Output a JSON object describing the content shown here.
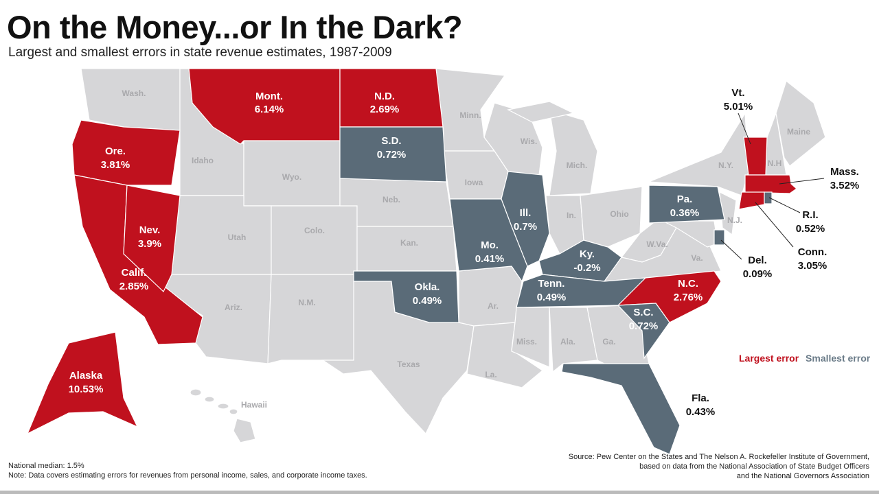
{
  "title": "On the Money...or In the Dark?",
  "subtitle": "Largest and smallest errors in state revenue estimates, 1987-2009",
  "colors": {
    "largest": "#c0111e",
    "smallest": "#5a6b78",
    "other": "#d6d6d8"
  },
  "legend": {
    "largest": "Largest error",
    "smallest": "Smallest error"
  },
  "largest_error_states": [
    {
      "name": "Mont.",
      "value": "6.14%"
    },
    {
      "name": "N.D.",
      "value": "2.69%"
    },
    {
      "name": "Ore.",
      "value": "3.81%"
    },
    {
      "name": "Nev.",
      "value": "3.9%"
    },
    {
      "name": "Calif.",
      "value": "2.85%"
    },
    {
      "name": "Alaska",
      "value": "10.53%"
    },
    {
      "name": "Vt.",
      "value": "5.01%"
    },
    {
      "name": "Mass.",
      "value": "3.52%"
    },
    {
      "name": "Conn.",
      "value": "3.05%"
    },
    {
      "name": "N.C.",
      "value": "2.76%"
    }
  ],
  "smallest_error_states": [
    {
      "name": "S.D.",
      "value": "0.72%"
    },
    {
      "name": "Ill.",
      "value": "0.7%"
    },
    {
      "name": "Mo.",
      "value": "0.41%"
    },
    {
      "name": "Ky.",
      "value": "-0.2%"
    },
    {
      "name": "Okla.",
      "value": "0.49%"
    },
    {
      "name": "Tenn.",
      "value": "0.49%"
    },
    {
      "name": "Pa.",
      "value": "0.36%"
    },
    {
      "name": "S.C.",
      "value": "0.72%"
    },
    {
      "name": "R.I.",
      "value": "0.52%"
    },
    {
      "name": "Del.",
      "value": "0.09%"
    },
    {
      "name": "Fla.",
      "value": "0.43%"
    }
  ],
  "other_states": [
    "Wash.",
    "Idaho",
    "Wyo.",
    "Utah",
    "Colo.",
    "Ariz.",
    "N.M.",
    "Neb.",
    "Kan.",
    "Texas",
    "Minn.",
    "Iowa",
    "Wis.",
    "Mich.",
    "In.",
    "Ohio",
    "Ar.",
    "La.",
    "Miss.",
    "Ala.",
    "Ga.",
    "W.Va.",
    "Va.",
    "N.Y.",
    "N.H",
    "Maine",
    "N.J.",
    "Hawaii"
  ],
  "notes": {
    "median": "National median: 1.5%",
    "note": "Note: Data covers estimating errors for revenues from personal income, sales, and corporate income taxes.",
    "source1": "Source: Pew Center on the States and The Nelson A. Rockefeller Institute of Government,",
    "source2": "based on data from the National Association of State Budget Officers",
    "source3": "and the National Governors Association"
  }
}
